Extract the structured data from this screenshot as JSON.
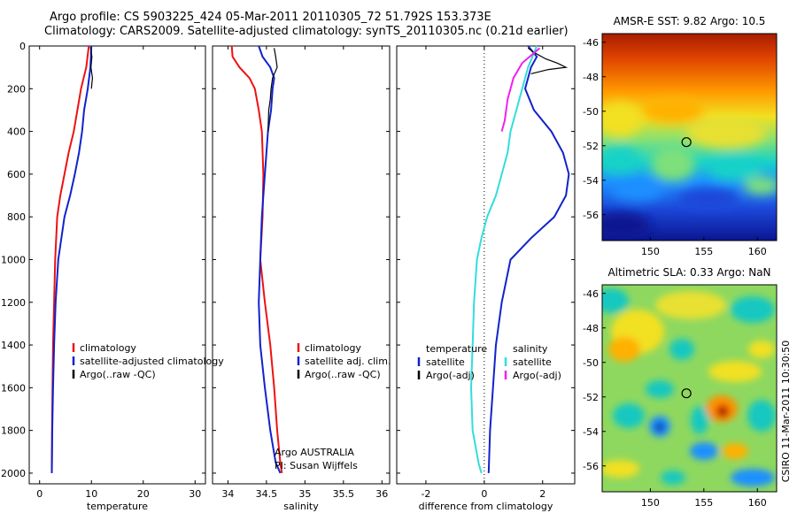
{
  "header": {
    "line1": "Argo profile: CS 5903225_424 05-Mar-2011 20110305_72 51.792S 153.373E",
    "line2": "Climatology: CARS2009. Satellite-adjusted climatology: synTS_20110305.nc (0.21d earlier)"
  },
  "side_label": "CSIRO 11-Mar-2011 10:30:50",
  "colors": {
    "red": "#ee1111",
    "blue": "#1122cc",
    "black": "#000000",
    "cyan": "#33dddd",
    "magenta": "#ee22ee"
  },
  "chart_data": [
    {
      "type": "line",
      "xlabel": "temperature",
      "xlim": [
        -2,
        32
      ],
      "xticks": [
        0,
        10,
        20,
        30
      ],
      "ylim": [
        0,
        2050
      ],
      "yticks": [
        0,
        200,
        400,
        600,
        800,
        1000,
        1200,
        1400,
        1600,
        1800,
        2000
      ],
      "ylabel_side": "left",
      "legend": {
        "placement": "lower-right",
        "entries": [
          "climatology",
          "satellite-adjusted climatology",
          "Argo(..raw -QC)"
        ]
      },
      "series": [
        {
          "name": "climatology",
          "color": "red",
          "x": [
            9.5,
            9.0,
            8.0,
            7.3,
            6.6,
            5.6,
            4.8,
            4.0,
            3.4,
            3.0,
            2.8,
            2.6,
            2.5,
            2.4,
            2.35
          ],
          "y": [
            0,
            100,
            200,
            300,
            400,
            500,
            600,
            700,
            800,
            1000,
            1200,
            1400,
            1600,
            1800,
            2000
          ]
        },
        {
          "name": "satellite-adjusted climatology",
          "color": "blue",
          "x": [
            10.0,
            9.8,
            9.3,
            8.6,
            8.2,
            7.6,
            6.8,
            5.9,
            4.8,
            3.6,
            3.1,
            2.8,
            2.6,
            2.45,
            2.35
          ],
          "y": [
            0,
            100,
            200,
            300,
            400,
            500,
            600,
            700,
            800,
            1000,
            1200,
            1400,
            1600,
            1800,
            2000
          ]
        },
        {
          "name": "Argo(..raw -QC)",
          "color": "black",
          "x": [
            9.8,
            10.1,
            9.9,
            10.2,
            10.0
          ],
          "y": [
            5,
            50,
            100,
            150,
            200
          ]
        }
      ]
    },
    {
      "type": "line",
      "xlabel": "salinity",
      "xlim": [
        33.8,
        36.1
      ],
      "xticks": [
        34,
        34.5,
        35,
        35.5,
        36
      ],
      "ylim": [
        0,
        2050
      ],
      "annotation": [
        "Argo AUSTRALIA",
        "PI: Susan Wijffels"
      ],
      "legend": {
        "placement": "lower-right",
        "entries": [
          "climatology",
          "satellite adj. clim.",
          "Argo(..raw -QC)"
        ]
      },
      "series": [
        {
          "name": "climatology",
          "color": "red",
          "x": [
            34.05,
            34.06,
            34.15,
            34.28,
            34.35,
            34.4,
            34.44,
            34.46,
            34.45,
            34.42,
            34.48,
            34.55,
            34.6,
            34.64,
            34.68,
            34.7
          ],
          "y": [
            0,
            50,
            100,
            150,
            200,
            300,
            400,
            600,
            800,
            1000,
            1200,
            1400,
            1600,
            1800,
            1950,
            2000
          ]
        },
        {
          "name": "satellite adj. clim.",
          "color": "blue",
          "x": [
            34.4,
            34.45,
            34.55,
            34.6,
            34.58,
            34.56,
            34.52,
            34.48,
            34.44,
            34.42,
            34.4,
            34.42,
            34.48,
            34.55,
            34.62,
            34.68
          ],
          "y": [
            0,
            50,
            100,
            150,
            200,
            300,
            400,
            600,
            800,
            1000,
            1200,
            1400,
            1600,
            1800,
            1950,
            2000
          ]
        },
        {
          "name": "Argo(..raw -QC)",
          "color": "black",
          "x": [
            34.6,
            34.62,
            34.64,
            34.58,
            34.56,
            34.55,
            34.53,
            34.52
          ],
          "y": [
            10,
            50,
            100,
            150,
            200,
            250,
            300,
            400
          ]
        }
      ]
    },
    {
      "type": "line",
      "xlabel": "difference from climatology",
      "xlim": [
        -3,
        3.1
      ],
      "xticks": [
        -2,
        0,
        2
      ],
      "ylim": [
        0,
        2050
      ],
      "legend": {
        "placement": "lower",
        "groups": [
          {
            "title": "temperature",
            "entries": [
              {
                "name": "satellite",
                "color": "blue"
              },
              {
                "name": "Argo(-adj)",
                "color": "black"
              }
            ]
          },
          {
            "title": "salinity",
            "entries": [
              {
                "name": "satellite",
                "color": "cyan"
              },
              {
                "name": "Argo(-adj)",
                "color": "magenta"
              }
            ]
          }
        ]
      },
      "series": [
        {
          "name": "temperature satellite",
          "color": "blue",
          "x": [
            1.5,
            1.8,
            1.6,
            1.4,
            1.7,
            2.3,
            2.7,
            2.9,
            2.8,
            2.4,
            1.6,
            0.9,
            0.6,
            0.4,
            0.3,
            0.2,
            0.15
          ],
          "y": [
            0,
            50,
            100,
            200,
            300,
            400,
            500,
            600,
            700,
            800,
            900,
            1000,
            1200,
            1400,
            1600,
            1800,
            2000
          ]
        },
        {
          "name": "temperature Argo(-adj)",
          "color": "black",
          "x": [
            1.5,
            1.7,
            2.1,
            2.5,
            2.8,
            2.2,
            1.6
          ],
          "y": [
            10,
            30,
            60,
            80,
            100,
            110,
            130
          ]
        },
        {
          "name": "salinity satellite",
          "color": "cyan",
          "x": [
            1.8,
            1.5,
            1.3,
            1.1,
            0.9,
            0.8,
            0.6,
            0.4,
            0.1,
            -0.1,
            -0.25,
            -0.35,
            -0.4,
            -0.45,
            -0.4,
            -0.2,
            -0.1
          ],
          "y": [
            0,
            100,
            200,
            300,
            400,
            500,
            600,
            700,
            800,
            900,
            1000,
            1200,
            1400,
            1600,
            1800,
            1950,
            2000
          ]
        },
        {
          "name": "salinity Argo(-adj)",
          "color": "magenta",
          "x": [
            1.9,
            1.3,
            1.0,
            0.8,
            0.7,
            0.6
          ],
          "y": [
            10,
            80,
            150,
            250,
            350,
            400
          ]
        }
      ]
    },
    {
      "type": "heatmap",
      "title": "AMSR-E SST: 9.82 Argo: 10.5",
      "xlim": [
        145.5,
        161.8
      ],
      "xticks": [
        150,
        155,
        160
      ],
      "ylim": [
        -57.5,
        -45.5
      ],
      "yticks": [
        -46,
        -48,
        -50,
        -52,
        -54,
        -56
      ],
      "marker": {
        "lon": 153.373,
        "lat": -51.792
      }
    },
    {
      "type": "heatmap",
      "title": "Altimetric SLA: 0.33 Argo: NaN",
      "xlim": [
        145.5,
        161.8
      ],
      "xticks": [
        150,
        155,
        160
      ],
      "ylim": [
        -57.5,
        -45.5
      ],
      "yticks": [
        -46,
        -48,
        -50,
        -52,
        -54,
        -56
      ],
      "marker": {
        "lon": 153.373,
        "lat": -51.792
      }
    }
  ]
}
